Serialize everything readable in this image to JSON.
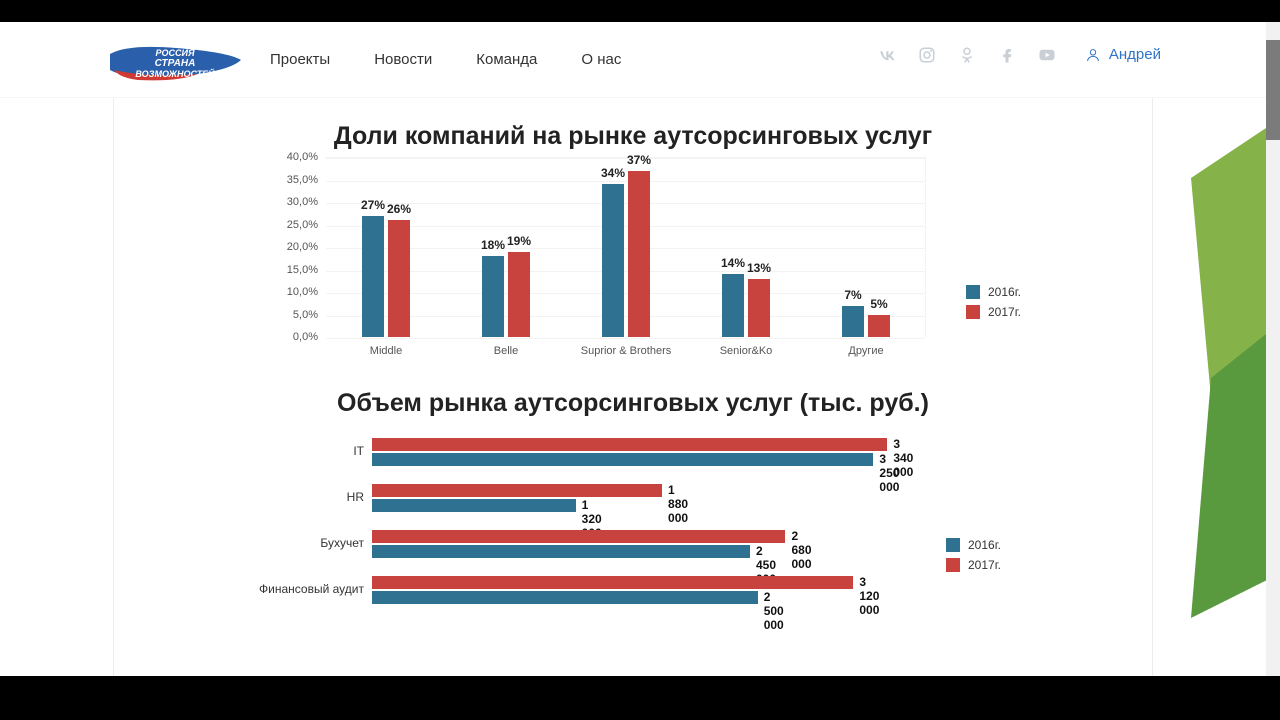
{
  "header": {
    "nav": [
      "Проекты",
      "Новости",
      "Команда",
      "О нас"
    ],
    "user_name": "Андрей"
  },
  "colors": {
    "series_2016": "#2f7191",
    "series_2017": "#c8433e",
    "grid": "#f3f3f3",
    "deco_green1": "#5a9a3f",
    "deco_green2": "#86b24a"
  },
  "chart1": {
    "title": "Доли компаний на рынке аутсорсинговых услуг",
    "ymax": 40,
    "ystep": 5,
    "y_labels": [
      "40,0%",
      "35,0%",
      "30,0%",
      "25,0%",
      "20,0%",
      "15,0%",
      "10,0%",
      "5,0%",
      "0,0%"
    ],
    "categories": [
      "Middle",
      "Belle",
      "Suprior & Brothers",
      "Senior&Ko",
      "Другие"
    ],
    "series": [
      {
        "name": "2016г.",
        "color": "#2f7191",
        "values": [
          27,
          18,
          34,
          14,
          7
        ],
        "labels": [
          "27%",
          "18%",
          "34%",
          "14%",
          "7%"
        ]
      },
      {
        "name": "2017г.",
        "color": "#c8433e",
        "values": [
          26,
          19,
          37,
          13,
          5
        ],
        "labels": [
          "26%",
          "19%",
          "37%",
          "13%",
          "5%"
        ]
      }
    ]
  },
  "chart2": {
    "title": "Объем рынка аутсорсинговых услуг (тыс. руб.)",
    "xmax": 3500000,
    "categories": [
      "IT",
      "HR",
      "Бухучет",
      "Финансовый аудит"
    ],
    "series": [
      {
        "name": "2016г.",
        "color": "#2f7191",
        "values": [
          3250000,
          1320000,
          2450000,
          2500000
        ],
        "labels": [
          "3 250 000",
          "1 320 000",
          "2 450 000",
          "2 500 000"
        ]
      },
      {
        "name": "2017г.",
        "color": "#c8433e",
        "values": [
          3340000,
          1880000,
          2680000,
          3120000
        ],
        "labels": [
          "3 340 000",
          "1 880 000",
          "2 680 000",
          "3 120 000"
        ]
      }
    ]
  }
}
